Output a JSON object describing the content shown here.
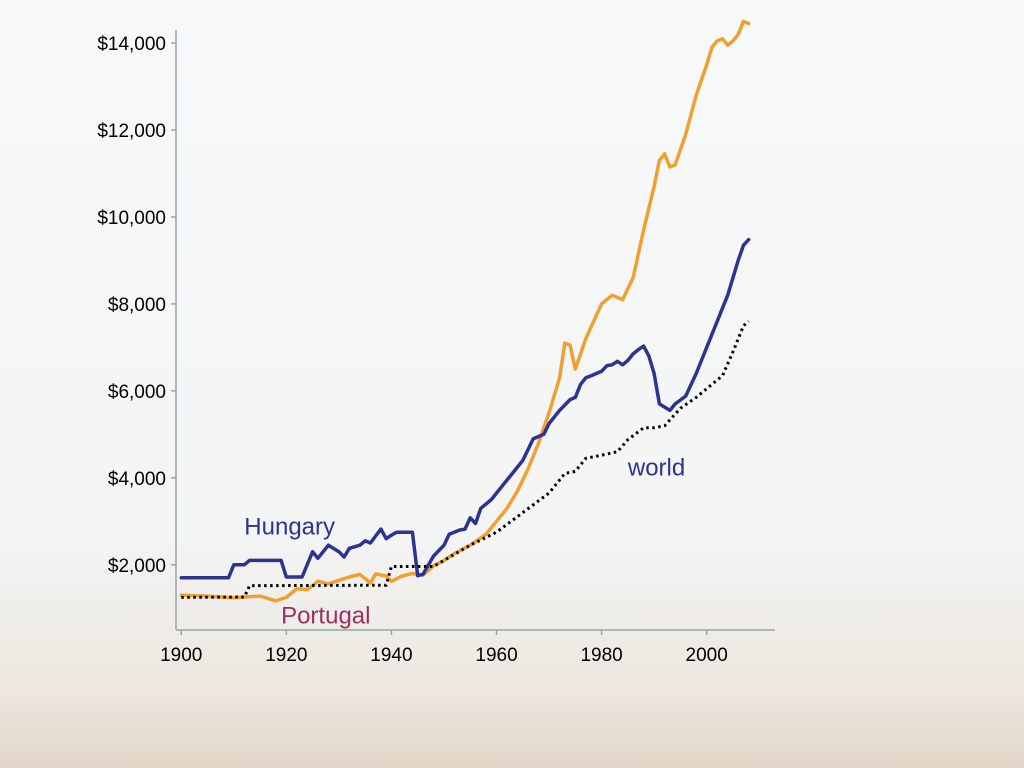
{
  "chart_data": {
    "type": "line",
    "title": "",
    "xlabel": "",
    "ylabel": "",
    "xlim": [
      1899,
      2013
    ],
    "ylim": [
      500,
      14300
    ],
    "x_ticks": [
      1900,
      1920,
      1940,
      1960,
      1980,
      2000
    ],
    "x_tick_labels": [
      "1900",
      "1920",
      "1940",
      "1960",
      "1980",
      "2000"
    ],
    "y_ticks": [
      2000,
      4000,
      6000,
      8000,
      10000,
      12000,
      14000
    ],
    "y_tick_labels": [
      "$2,000",
      "$4,000",
      "$6,000",
      "$8,000",
      "$10,000",
      "$12,000",
      "$14,000"
    ],
    "grid": false,
    "legend": "inline labels",
    "series": [
      {
        "name": "Portugal",
        "color": "#f0a030",
        "label_color": "#9a3060",
        "style": "solid",
        "points": [
          [
            1900,
            1300
          ],
          [
            1905,
            1280
          ],
          [
            1910,
            1240
          ],
          [
            1915,
            1280
          ],
          [
            1918,
            1170
          ],
          [
            1920,
            1250
          ],
          [
            1922,
            1450
          ],
          [
            1924,
            1430
          ],
          [
            1926,
            1620
          ],
          [
            1928,
            1560
          ],
          [
            1930,
            1640
          ],
          [
            1932,
            1720
          ],
          [
            1934,
            1780
          ],
          [
            1936,
            1580
          ],
          [
            1937,
            1790
          ],
          [
            1939,
            1740
          ],
          [
            1940,
            1620
          ],
          [
            1942,
            1740
          ],
          [
            1944,
            1800
          ],
          [
            1946,
            1760
          ],
          [
            1948,
            1980
          ],
          [
            1950,
            2100
          ],
          [
            1952,
            2260
          ],
          [
            1955,
            2450
          ],
          [
            1958,
            2700
          ],
          [
            1960,
            3000
          ],
          [
            1962,
            3300
          ],
          [
            1964,
            3700
          ],
          [
            1966,
            4200
          ],
          [
            1968,
            4800
          ],
          [
            1970,
            5500
          ],
          [
            1972,
            6300
          ],
          [
            1973,
            7100
          ],
          [
            1974,
            7050
          ],
          [
            1975,
            6500
          ],
          [
            1977,
            7200
          ],
          [
            1980,
            8000
          ],
          [
            1982,
            8200
          ],
          [
            1984,
            8100
          ],
          [
            1986,
            8600
          ],
          [
            1988,
            9700
          ],
          [
            1990,
            10700
          ],
          [
            1991,
            11300
          ],
          [
            1992,
            11450
          ],
          [
            1993,
            11150
          ],
          [
            1994,
            11200
          ],
          [
            1996,
            11900
          ],
          [
            1998,
            12800
          ],
          [
            2000,
            13500
          ],
          [
            2001,
            13900
          ],
          [
            2002,
            14050
          ],
          [
            2003,
            14100
          ],
          [
            2004,
            13950
          ],
          [
            2005,
            14050
          ],
          [
            2006,
            14200
          ],
          [
            2007,
            14500
          ],
          [
            2008,
            14450
          ]
        ]
      },
      {
        "name": "Hungary",
        "color": "#2d3390",
        "label_color": "#2d3390",
        "style": "solid",
        "points": [
          [
            1900,
            1700
          ],
          [
            1909,
            1700
          ],
          [
            1910,
            2000
          ],
          [
            1912,
            2000
          ],
          [
            1913,
            2100
          ],
          [
            1919,
            2100
          ],
          [
            1920,
            1720
          ],
          [
            1923,
            1720
          ],
          [
            1925,
            2300
          ],
          [
            1926,
            2150
          ],
          [
            1928,
            2450
          ],
          [
            1930,
            2300
          ],
          [
            1931,
            2180
          ],
          [
            1932,
            2380
          ],
          [
            1934,
            2450
          ],
          [
            1935,
            2550
          ],
          [
            1936,
            2500
          ],
          [
            1938,
            2820
          ],
          [
            1939,
            2600
          ],
          [
            1940,
            2680
          ],
          [
            1941,
            2750
          ],
          [
            1944,
            2750
          ],
          [
            1945,
            1750
          ],
          [
            1946,
            1780
          ],
          [
            1948,
            2200
          ],
          [
            1950,
            2450
          ],
          [
            1951,
            2700
          ],
          [
            1953,
            2800
          ],
          [
            1954,
            2820
          ],
          [
            1955,
            3080
          ],
          [
            1956,
            2950
          ],
          [
            1957,
            3300
          ],
          [
            1959,
            3500
          ],
          [
            1961,
            3800
          ],
          [
            1963,
            4100
          ],
          [
            1965,
            4400
          ],
          [
            1966,
            4650
          ],
          [
            1967,
            4900
          ],
          [
            1969,
            5000
          ],
          [
            1970,
            5250
          ],
          [
            1972,
            5550
          ],
          [
            1974,
            5800
          ],
          [
            1975,
            5850
          ],
          [
            1976,
            6150
          ],
          [
            1977,
            6300
          ],
          [
            1978,
            6350
          ],
          [
            1980,
            6450
          ],
          [
            1981,
            6580
          ],
          [
            1982,
            6600
          ],
          [
            1983,
            6680
          ],
          [
            1984,
            6600
          ],
          [
            1985,
            6700
          ],
          [
            1986,
            6850
          ],
          [
            1987,
            6950
          ],
          [
            1988,
            7030
          ],
          [
            1989,
            6800
          ],
          [
            1990,
            6400
          ],
          [
            1991,
            5700
          ],
          [
            1993,
            5550
          ],
          [
            1994,
            5700
          ],
          [
            1996,
            5880
          ],
          [
            1998,
            6400
          ],
          [
            2000,
            7000
          ],
          [
            2002,
            7600
          ],
          [
            2004,
            8200
          ],
          [
            2006,
            9000
          ],
          [
            2007,
            9350
          ],
          [
            2008,
            9480
          ]
        ]
      },
      {
        "name": "world",
        "color": "#000000",
        "label_color": "#2d3390",
        "style": "dotted",
        "points": [
          [
            1900,
            1250
          ],
          [
            1912,
            1260
          ],
          [
            1913,
            1520
          ],
          [
            1939,
            1530
          ],
          [
            1940,
            1960
          ],
          [
            1948,
            1960
          ],
          [
            1950,
            2100
          ],
          [
            1955,
            2450
          ],
          [
            1960,
            2750
          ],
          [
            1965,
            3200
          ],
          [
            1970,
            3650
          ],
          [
            1973,
            4100
          ],
          [
            1975,
            4150
          ],
          [
            1977,
            4450
          ],
          [
            1980,
            4520
          ],
          [
            1983,
            4600
          ],
          [
            1985,
            4880
          ],
          [
            1988,
            5150
          ],
          [
            1990,
            5150
          ],
          [
            1992,
            5200
          ],
          [
            1995,
            5600
          ],
          [
            1998,
            5850
          ],
          [
            2000,
            6050
          ],
          [
            2003,
            6350
          ],
          [
            2005,
            6900
          ],
          [
            2007,
            7500
          ],
          [
            2008,
            7600
          ]
        ]
      }
    ],
    "annotations": [
      {
        "text": "Hungary",
        "series": "Hungary",
        "x": 1912,
        "y": 2700
      },
      {
        "text": "Portugal",
        "series": "Portugal",
        "x": 1919,
        "y": 650
      },
      {
        "text": "world",
        "series": "world",
        "x": 1985,
        "y": 4050
      }
    ]
  }
}
